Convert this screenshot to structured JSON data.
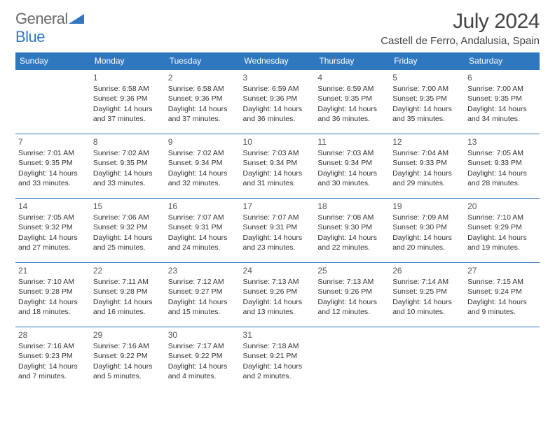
{
  "brand": {
    "part1": "General",
    "part2": "Blue"
  },
  "title": "July 2024",
  "location": "Castell de Ferro, Andalusia, Spain",
  "colors": {
    "header_bg": "#2f78bf",
    "header_text": "#ffffff",
    "rule": "#2f78bf",
    "body_text": "#333333",
    "title_text": "#444444"
  },
  "day_headers": [
    "Sunday",
    "Monday",
    "Tuesday",
    "Wednesday",
    "Thursday",
    "Friday",
    "Saturday"
  ],
  "weeks": [
    [
      null,
      {
        "n": "1",
        "sunrise": "6:58 AM",
        "sunset": "9:36 PM",
        "daylight": "14 hours and 37 minutes."
      },
      {
        "n": "2",
        "sunrise": "6:58 AM",
        "sunset": "9:36 PM",
        "daylight": "14 hours and 37 minutes."
      },
      {
        "n": "3",
        "sunrise": "6:59 AM",
        "sunset": "9:36 PM",
        "daylight": "14 hours and 36 minutes."
      },
      {
        "n": "4",
        "sunrise": "6:59 AM",
        "sunset": "9:35 PM",
        "daylight": "14 hours and 36 minutes."
      },
      {
        "n": "5",
        "sunrise": "7:00 AM",
        "sunset": "9:35 PM",
        "daylight": "14 hours and 35 minutes."
      },
      {
        "n": "6",
        "sunrise": "7:00 AM",
        "sunset": "9:35 PM",
        "daylight": "14 hours and 34 minutes."
      }
    ],
    [
      {
        "n": "7",
        "sunrise": "7:01 AM",
        "sunset": "9:35 PM",
        "daylight": "14 hours and 33 minutes."
      },
      {
        "n": "8",
        "sunrise": "7:02 AM",
        "sunset": "9:35 PM",
        "daylight": "14 hours and 33 minutes."
      },
      {
        "n": "9",
        "sunrise": "7:02 AM",
        "sunset": "9:34 PM",
        "daylight": "14 hours and 32 minutes."
      },
      {
        "n": "10",
        "sunrise": "7:03 AM",
        "sunset": "9:34 PM",
        "daylight": "14 hours and 31 minutes."
      },
      {
        "n": "11",
        "sunrise": "7:03 AM",
        "sunset": "9:34 PM",
        "daylight": "14 hours and 30 minutes."
      },
      {
        "n": "12",
        "sunrise": "7:04 AM",
        "sunset": "9:33 PM",
        "daylight": "14 hours and 29 minutes."
      },
      {
        "n": "13",
        "sunrise": "7:05 AM",
        "sunset": "9:33 PM",
        "daylight": "14 hours and 28 minutes."
      }
    ],
    [
      {
        "n": "14",
        "sunrise": "7:05 AM",
        "sunset": "9:32 PM",
        "daylight": "14 hours and 27 minutes."
      },
      {
        "n": "15",
        "sunrise": "7:06 AM",
        "sunset": "9:32 PM",
        "daylight": "14 hours and 25 minutes."
      },
      {
        "n": "16",
        "sunrise": "7:07 AM",
        "sunset": "9:31 PM",
        "daylight": "14 hours and 24 minutes."
      },
      {
        "n": "17",
        "sunrise": "7:07 AM",
        "sunset": "9:31 PM",
        "daylight": "14 hours and 23 minutes."
      },
      {
        "n": "18",
        "sunrise": "7:08 AM",
        "sunset": "9:30 PM",
        "daylight": "14 hours and 22 minutes."
      },
      {
        "n": "19",
        "sunrise": "7:09 AM",
        "sunset": "9:30 PM",
        "daylight": "14 hours and 20 minutes."
      },
      {
        "n": "20",
        "sunrise": "7:10 AM",
        "sunset": "9:29 PM",
        "daylight": "14 hours and 19 minutes."
      }
    ],
    [
      {
        "n": "21",
        "sunrise": "7:10 AM",
        "sunset": "9:28 PM",
        "daylight": "14 hours and 18 minutes."
      },
      {
        "n": "22",
        "sunrise": "7:11 AM",
        "sunset": "9:28 PM",
        "daylight": "14 hours and 16 minutes."
      },
      {
        "n": "23",
        "sunrise": "7:12 AM",
        "sunset": "9:27 PM",
        "daylight": "14 hours and 15 minutes."
      },
      {
        "n": "24",
        "sunrise": "7:13 AM",
        "sunset": "9:26 PM",
        "daylight": "14 hours and 13 minutes."
      },
      {
        "n": "25",
        "sunrise": "7:13 AM",
        "sunset": "9:26 PM",
        "daylight": "14 hours and 12 minutes."
      },
      {
        "n": "26",
        "sunrise": "7:14 AM",
        "sunset": "9:25 PM",
        "daylight": "14 hours and 10 minutes."
      },
      {
        "n": "27",
        "sunrise": "7:15 AM",
        "sunset": "9:24 PM",
        "daylight": "14 hours and 9 minutes."
      }
    ],
    [
      {
        "n": "28",
        "sunrise": "7:16 AM",
        "sunset": "9:23 PM",
        "daylight": "14 hours and 7 minutes."
      },
      {
        "n": "29",
        "sunrise": "7:16 AM",
        "sunset": "9:22 PM",
        "daylight": "14 hours and 5 minutes."
      },
      {
        "n": "30",
        "sunrise": "7:17 AM",
        "sunset": "9:22 PM",
        "daylight": "14 hours and 4 minutes."
      },
      {
        "n": "31",
        "sunrise": "7:18 AM",
        "sunset": "9:21 PM",
        "daylight": "14 hours and 2 minutes."
      },
      null,
      null,
      null
    ]
  ],
  "labels": {
    "sunrise": "Sunrise:",
    "sunset": "Sunset:",
    "daylight": "Daylight:"
  }
}
